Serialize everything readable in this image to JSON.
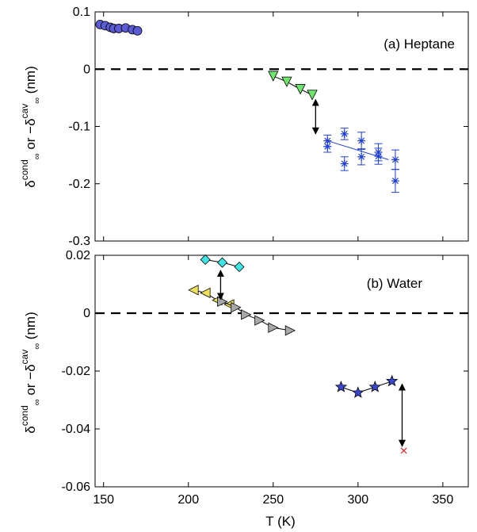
{
  "chart_data": [
    {
      "type": "scatter",
      "panel_label": "(a) Heptane",
      "ylabel": "δ∞cond or −δ∞cav (nm)",
      "xlabel": "",
      "xlim": [
        145,
        365
      ],
      "ylim": [
        -0.3,
        0.1
      ],
      "yticks": [
        "0.1",
        "0",
        "-0.1",
        "-0.2",
        "-0.3"
      ],
      "ytick_values": [
        0.1,
        0,
        -0.1,
        -0.2,
        -0.3
      ],
      "zero_line": "dashed",
      "series": [
        {
          "marker": "circle",
          "color": "#5b5bd6",
          "connected": true,
          "points": [
            [
              148,
              0.078
            ],
            [
              151,
              0.076
            ],
            [
              154,
              0.073
            ],
            [
              156,
              0.071
            ],
            [
              159,
              0.071
            ],
            [
              163,
              0.072
            ],
            [
              167,
              0.069
            ],
            [
              170,
              0.067
            ]
          ]
        },
        {
          "marker": "triangle-down",
          "color": "#6ee66e",
          "connected": true,
          "points": [
            [
              250,
              -0.012
            ],
            [
              258,
              -0.022
            ],
            [
              266,
              -0.035
            ],
            [
              273,
              -0.045
            ]
          ]
        },
        {
          "marker": "asterisk",
          "color": "#1f3fd6",
          "connected": false,
          "errorbars": true,
          "points": [
            [
              282,
              -0.125,
              0.01
            ],
            [
              282,
              -0.135,
              0.01
            ],
            [
              292,
              -0.113,
              0.01
            ],
            [
              292,
              -0.165,
              0.012
            ],
            [
              302,
              -0.125,
              0.015
            ],
            [
              302,
              -0.153,
              0.014
            ],
            [
              312,
              -0.145,
              0.015
            ],
            [
              312,
              -0.152,
              0.014
            ],
            [
              322,
              -0.158,
              0.017
            ],
            [
              322,
              -0.195,
              0.02
            ]
          ],
          "fit_line": [
            [
              282,
              -0.125
            ],
            [
              318,
              -0.158
            ]
          ]
        }
      ],
      "arrows": [
        {
          "x": 275,
          "y_from": -0.053,
          "y_to": -0.113
        }
      ]
    },
    {
      "type": "scatter",
      "panel_label": "(b) Water",
      "ylabel": "δ∞cond or −δ∞cav (nm)",
      "xlabel": "T (K)",
      "xlim": [
        145,
        365
      ],
      "ylim": [
        -0.06,
        0.02
      ],
      "xticks": [
        "150",
        "200",
        "250",
        "300",
        "350"
      ],
      "xtick_values": [
        150,
        200,
        250,
        300,
        350
      ],
      "yticks": [
        "0.02",
        "0",
        "-0.02",
        "-0.04",
        "-0.06"
      ],
      "ytick_values": [
        0.02,
        0,
        -0.02,
        -0.04,
        -0.06
      ],
      "zero_line": "dashed",
      "series": [
        {
          "marker": "diamond",
          "color": "#3ee6e6",
          "connected": true,
          "points": [
            [
              210,
              0.0185
            ],
            [
              220,
              0.0175
            ],
            [
              230,
              0.016
            ]
          ]
        },
        {
          "marker": "triangle-left",
          "color": "#f0e05a",
          "connected": true,
          "points": [
            [
              203,
              0.008
            ],
            [
              210,
              0.007
            ],
            [
              217,
              0.0045
            ],
            [
              224,
              0.003
            ]
          ]
        },
        {
          "marker": "triangle-right",
          "color": "#a8a8a8",
          "connected": true,
          "points": [
            [
              220,
              0.004
            ],
            [
              228,
              0.002
            ],
            [
              234,
              -0.0005
            ],
            [
              242,
              -0.0025
            ],
            [
              250,
              -0.005
            ],
            [
              260,
              -0.006
            ]
          ]
        },
        {
          "marker": "star",
          "color": "#3a48d0",
          "connected": true,
          "points": [
            [
              290,
              -0.0255
            ],
            [
              300,
              -0.0275
            ],
            [
              310,
              -0.0255
            ],
            [
              320,
              -0.0235
            ]
          ]
        },
        {
          "marker": "x",
          "color": "#e02020",
          "connected": false,
          "points": [
            [
              327,
              -0.0475
            ]
          ]
        }
      ],
      "arrows": [
        {
          "x": 219,
          "y_from": 0.0148,
          "y_to": 0.0048
        },
        {
          "x": 326,
          "y_from": -0.0245,
          "y_to": -0.046
        }
      ]
    }
  ]
}
